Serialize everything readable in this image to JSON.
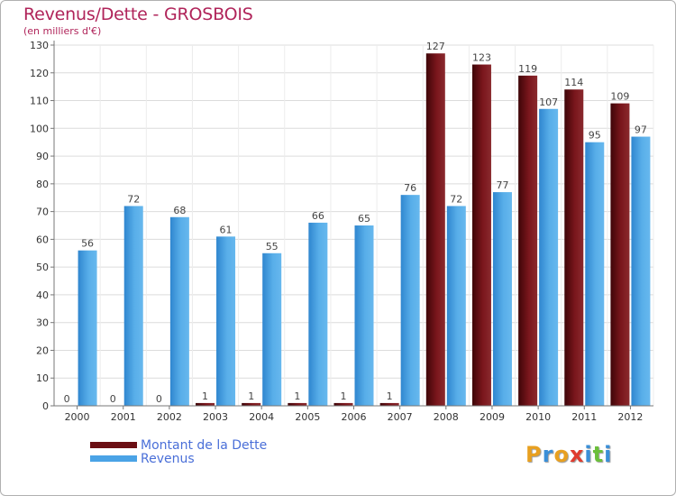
{
  "header": {
    "title": "Revenus/Dette - GROSBOIS",
    "subtitle": "(en milliers d'€)"
  },
  "legend": {
    "items": [
      {
        "label": "Montant de la Dette",
        "color": "#6b0f14"
      },
      {
        "label": "Revenus",
        "color": "#4aa3e6"
      }
    ]
  },
  "logo": {
    "text": "Proxiti",
    "letters": [
      {
        "char": "P",
        "color": "#e8a020"
      },
      {
        "char": "r",
        "color": "#3a8fd8"
      },
      {
        "char": "o",
        "color": "#e8a020"
      },
      {
        "char": "x",
        "color": "#e03b2e"
      },
      {
        "char": "i",
        "color": "#3a8fd8"
      },
      {
        "char": "t",
        "color": "#6bbf3a"
      },
      {
        "char": "i",
        "color": "#3a8fd8"
      }
    ]
  },
  "chart_data": {
    "type": "bar",
    "title": "Revenus/Dette - GROSBOIS",
    "subtitle": "(en milliers d'€)",
    "xlabel": "",
    "ylabel": "",
    "ylim": [
      0,
      130
    ],
    "yticks": [
      0,
      10,
      20,
      30,
      40,
      50,
      60,
      70,
      80,
      90,
      100,
      110,
      120,
      130
    ],
    "grid": true,
    "legend_position": "bottom-left",
    "categories": [
      "2000",
      "2001",
      "2002",
      "2003",
      "2004",
      "2005",
      "2006",
      "2007",
      "2008",
      "2009",
      "2010",
      "2011",
      "2012"
    ],
    "series": [
      {
        "name": "Montant de la Dette",
        "color": "#6b0f14",
        "values": [
          0,
          0,
          0,
          1,
          1,
          1,
          1,
          1,
          127,
          123,
          119,
          114,
          109
        ]
      },
      {
        "name": "Revenus",
        "color": "#4aa3e6",
        "values": [
          56,
          72,
          68,
          61,
          55,
          66,
          65,
          76,
          72,
          77,
          107,
          95,
          97
        ]
      }
    ]
  }
}
